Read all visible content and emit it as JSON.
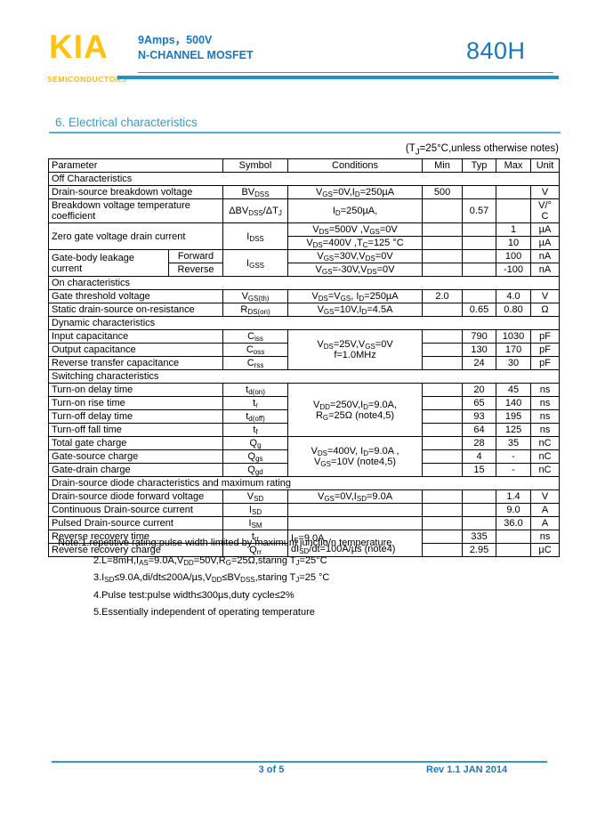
{
  "colors": {
    "brand_yellow": "#ffc20e",
    "header_blue": "#1878be",
    "line_blue": "#2e9dc9",
    "title_blue": "#339fc9"
  },
  "header": {
    "logo": "KIA",
    "logo_sub": "SEMICONDUCTORS",
    "product_line1": "9Amps，500V",
    "product_line2": "N-CHANNEL MOSFET",
    "part_number": "840H"
  },
  "section_title": "6.  Electrical characteristics",
  "table_note": "(T~J~=25°C,unless otherwise notes)",
  "table": {
    "headers": {
      "parameter": "Parameter",
      "symbol": "Symbol",
      "conditions": "Conditions",
      "min": "Min",
      "typ": "Typ",
      "max": "Max",
      "unit": "Unit"
    },
    "rows": [
      {
        "title": "Off Characteristics"
      },
      {
        "parameter": "Drain-source breakdown voltage",
        "symbol": "BV~DSS~",
        "conditions": "V~GS~=0V,I~D~=250µA",
        "min": "500",
        "typ": "",
        "max": "",
        "unit": "V"
      },
      {
        "parameter": "Breakdown voltage temperature coefficient",
        "symbol": "ΔBV~DSS~/ΔT~J~",
        "conditions": "I~D~=250µA,",
        "min": "",
        "typ": "0.57",
        "max": "",
        "unit": "V/°\nC"
      },
      {
        "parameter": "Zero gate voltage drain current",
        "symbol": "I~DSS~",
        "conditions": "V~DS~=500V ,V~GS~=0V",
        "min": "",
        "typ": "",
        "max": "1",
        "unit": "µA"
      },
      {
        "conditions": "V~DS~=400V ,T~C~=125 °C",
        "min": "",
        "typ": "",
        "max": "10",
        "unit": "µA"
      },
      {
        "parameter": "Gate-body leakage\ncurrent",
        "sub": "Forward",
        "symbol": "I~GSS~",
        "conditions": "V~GS~=30V,V~DS~=0V",
        "min": "",
        "typ": "",
        "max": "100",
        "unit": "nA"
      },
      {
        "sub": "Reverse",
        "conditions": "V~GS~=-30V,V~DS~=0V",
        "min": "",
        "typ": "",
        "max": "-100",
        "unit": "nA"
      },
      {
        "title": "On characteristics"
      },
      {
        "parameter": "Gate threshold voltage",
        "symbol": "V~GS(th)~",
        "conditions": "V~DS~=V~GS~, I~D~=250µA",
        "min": "2.0",
        "typ": "",
        "max": "4.0",
        "unit": "V"
      },
      {
        "parameter": "Static drain-source on-resistance",
        "symbol": "R~DS(on)~",
        "conditions": "V~GS~=10V,I~D~=4.5A",
        "min": "",
        "typ": "0.65",
        "max": "0.80",
        "unit": "Ω"
      },
      {
        "title": "Dynamic characteristics"
      },
      {
        "parameter": "Input capacitance",
        "symbol": "C~iss~",
        "conditions": "V~DS~=25V,V~GS~=0V\nf=1.0MHz",
        "min": "",
        "typ": "790",
        "max": "1030",
        "unit": "pF"
      },
      {
        "parameter": "Output capacitance",
        "symbol": "C~oss~",
        "min": "",
        "typ": "130",
        "max": "170",
        "unit": "pF"
      },
      {
        "parameter": "Reverse transfer capacitance",
        "symbol": "C~rss~",
        "min": "",
        "typ": "24",
        "max": "30",
        "unit": "pF"
      },
      {
        "title": "Switching characteristics"
      },
      {
        "parameter": "Turn-on delay time",
        "symbol": "t~d(on)~",
        "conditions": "V~DD~=250V,I~D~=9.0A,\nR~G~=25Ω (note4,5)",
        "min": "",
        "typ": "20",
        "max": "45",
        "unit": "ns"
      },
      {
        "parameter": "Turn-on rise time",
        "symbol": "t~r~",
        "min": "",
        "typ": "65",
        "max": "140",
        "unit": "ns"
      },
      {
        "parameter": "Turn-off delay time",
        "symbol": "t~d(off)~",
        "min": "",
        "typ": "93",
        "max": "195",
        "unit": "ns"
      },
      {
        "parameter": "Turn-off fall time",
        "symbol": "t~f~",
        "min": "",
        "typ": "64",
        "max": "125",
        "unit": "ns"
      },
      {
        "parameter": "Total gate charge",
        "symbol": "Q~g~",
        "conditions": "V~DS~=400V, I~D~=9.0A ,\nV~GS~=10V (note4,5)",
        "min": "",
        "typ": "28",
        "max": "35",
        "unit": "nC"
      },
      {
        "parameter": "Gate-source charge",
        "symbol": "Q~gs~",
        "min": "",
        "typ": "4",
        "max": "-",
        "unit": "nC"
      },
      {
        "parameter": "Gate-drain charge",
        "symbol": "Q~gd~",
        "min": "",
        "typ": "15",
        "max": "-",
        "unit": "nC"
      },
      {
        "title": "Drain-source diode characteristics and maximum rating"
      },
      {
        "parameter": "Drain-source diode forward voltage",
        "symbol": "V~SD~",
        "conditions": "V~GS~=0V,I~SD~=9.0A",
        "min": "",
        "typ": "",
        "max": "1.4",
        "unit": "V"
      },
      {
        "parameter": "Continuous Drain-source current",
        "symbol": "I~SD~",
        "conditions": "",
        "min": "",
        "typ": "",
        "max": "9.0",
        "unit": "A"
      },
      {
        "parameter": "Pulsed Drain-source current",
        "symbol": "I~SM~",
        "conditions": "",
        "min": "",
        "typ": "",
        "max": "36.0",
        "unit": "A"
      },
      {
        "parameter": "Reverse recovery time",
        "symbol": "t~rr~",
        "conditions": "I~S~=9.0A,\ndI~SD~/dt=100A/µs (note4)",
        "min": "",
        "typ": "335",
        "max": "",
        "unit": "ns"
      },
      {
        "parameter": "Reverse recovery charge",
        "symbol": "Q~rr~",
        "min": "",
        "typ": "2.95",
        "max": "",
        "unit": "µC"
      }
    ]
  },
  "notes": [
    "Note:1.repetitive rating:pulse width limited by maximum junctio/n temperature",
    "2.L=8mH,I~AS~=9.0A,V~DD~=50V,R~G~=25Ω,staring T~J~=25°C",
    "3.I~SD~≤9.0A,di/dt≤200A/µs,V~DD~≤BV~DSS~,staring T~J~=25 °C",
    "4.Pulse test:pulse width≤300µs,duty cycle≤2%",
    "5.Essentially independent of operating temperature"
  ],
  "footer": {
    "page": "3 of 5",
    "rev": "Rev 1.1 JAN 2014"
  }
}
